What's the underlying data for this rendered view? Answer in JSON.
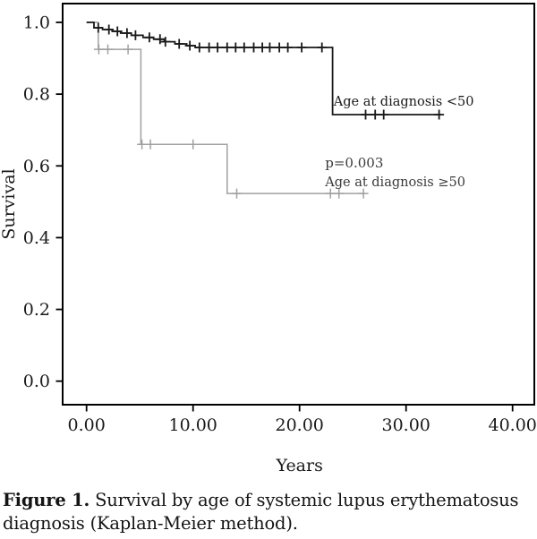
{
  "figure": {
    "caption_label": "Figure 1.",
    "caption_text": " Survival by age of systemic lupus erythematosus diagnosis (Kaplan-Meier method)."
  },
  "chart_data": {
    "type": "line",
    "subtype": "kaplan-meier-step",
    "title": "",
    "xlabel": "Years",
    "ylabel": "Survival",
    "xlim": [
      -2.25,
      42.1
    ],
    "ylim": [
      -0.07,
      1.05
    ],
    "grid": false,
    "legend_position": "none",
    "x_ticks": {
      "values": [
        0,
        10,
        20,
        30,
        40
      ],
      "labels": [
        "0.00",
        "10.00",
        "20.00",
        "30.00",
        "40.00"
      ]
    },
    "y_ticks": {
      "values": [
        1.0,
        0.8,
        0.6,
        0.4,
        0.2,
        0.0
      ],
      "labels": [
        "1.0",
        "0.8",
        "0.6",
        "0.4",
        "0.2",
        "0.0"
      ]
    },
    "axis_color": "#000000",
    "series": [
      {
        "name": "Age at diagnosis ≥50",
        "key": "age-ge-50",
        "color": "#a0a0a0",
        "line_width": 1.5,
        "steps": [
          [
            0,
            1.0
          ],
          [
            1.1,
            0.925
          ],
          [
            5.1,
            0.66
          ],
          [
            13.2,
            0.523
          ]
        ],
        "end_t": 26.1,
        "censors": [
          [
            1.15,
            0.925
          ],
          [
            2.0,
            0.925
          ],
          [
            3.9,
            0.925
          ],
          [
            5.2,
            0.66
          ],
          [
            6.0,
            0.66
          ],
          [
            10.0,
            0.66
          ],
          [
            14.1,
            0.523
          ],
          [
            22.9,
            0.523
          ],
          [
            23.7,
            0.523
          ],
          [
            26.0,
            0.523
          ]
        ]
      },
      {
        "name": "Age at diagnosis <50",
        "key": "age-lt-50",
        "color": "#1a1a1a",
        "line_width": 1.8,
        "steps": [
          [
            0,
            1.0
          ],
          [
            0.7,
            0.985
          ],
          [
            1.5,
            0.98
          ],
          [
            2.4,
            0.975
          ],
          [
            3.2,
            0.97
          ],
          [
            4.2,
            0.964
          ],
          [
            5.3,
            0.958
          ],
          [
            6.3,
            0.953
          ],
          [
            7.3,
            0.946
          ],
          [
            8.3,
            0.94
          ],
          [
            9.4,
            0.935
          ],
          [
            10.2,
            0.93
          ],
          [
            23.1,
            0.743
          ]
        ],
        "end_t": 33.3,
        "censors": [
          [
            1.1,
            0.985
          ],
          [
            2.1,
            0.98
          ],
          [
            2.9,
            0.975
          ],
          [
            3.8,
            0.97
          ],
          [
            4.6,
            0.964
          ],
          [
            5.9,
            0.958
          ],
          [
            6.9,
            0.953
          ],
          [
            7.4,
            0.946
          ],
          [
            8.7,
            0.94
          ],
          [
            9.7,
            0.935
          ],
          [
            10.6,
            0.93
          ],
          [
            11.5,
            0.93
          ],
          [
            12.3,
            0.93
          ],
          [
            13.2,
            0.93
          ],
          [
            14.0,
            0.93
          ],
          [
            14.8,
            0.93
          ],
          [
            15.7,
            0.93
          ],
          [
            16.5,
            0.93
          ],
          [
            17.2,
            0.93
          ],
          [
            18.1,
            0.93
          ],
          [
            18.9,
            0.93
          ],
          [
            20.2,
            0.93
          ],
          [
            22.1,
            0.93
          ],
          [
            26.2,
            0.743
          ],
          [
            27.1,
            0.743
          ],
          [
            27.9,
            0.743
          ],
          [
            33.1,
            0.743
          ]
        ]
      }
    ],
    "annotations": [
      {
        "key": "age-lt-50-label",
        "text": "Age at diagnosis <50",
        "t": 23.2,
        "v": 0.768,
        "color": "#1a1a1a",
        "font_size": 14.5
      },
      {
        "key": "p-value",
        "text": "p=0.003",
        "t": 22.4,
        "v": 0.596,
        "color": "#3a3a3a",
        "font_size": 15
      },
      {
        "key": "age-ge-50-label",
        "text": "Age at diagnosis ≥50",
        "t": 22.4,
        "v": 0.543,
        "color": "#3a3a3a",
        "font_size": 14.5
      }
    ]
  }
}
